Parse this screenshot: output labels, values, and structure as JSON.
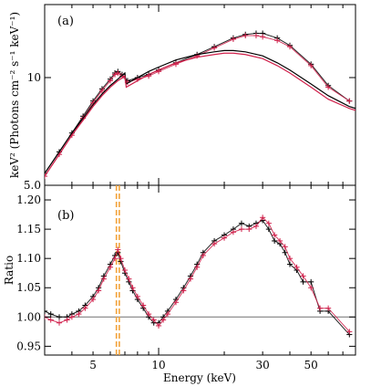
{
  "colors": {
    "black": "#000000",
    "red": "#d01f4a",
    "orange": "#f2a23a",
    "refline": "#707070"
  },
  "chart_data": [
    {
      "panel": "a",
      "type": "line",
      "label": "(a)",
      "ylabel": "keV² (Photons cm⁻² s⁻¹ keV⁻¹)",
      "xscale": "log",
      "yscale": "log",
      "xlim": [
        3.0,
        80.0
      ],
      "ylim": [
        5.0,
        16.0
      ],
      "yticks": [
        5.0,
        10
      ],
      "ytick_labels": [
        "5.0",
        "10"
      ],
      "series": [
        {
          "name": "",
          "kind": "data",
          "color": "black",
          "x": [
            3.0,
            3.5,
            4.0,
            4.5,
            5.0,
            5.5,
            6.0,
            6.3,
            6.5,
            6.8,
            7.2,
            8.0,
            9.0,
            10,
            12,
            15,
            18,
            22,
            25,
            28,
            30,
            35,
            40,
            50,
            60,
            75
          ],
          "y": [
            5.4,
            6.2,
            7.0,
            7.8,
            8.6,
            9.3,
            9.9,
            10.3,
            10.4,
            10.2,
            9.8,
            10.0,
            10.2,
            10.5,
            11.0,
            11.6,
            12.2,
            12.9,
            13.2,
            13.3,
            13.3,
            12.9,
            12.3,
            10.9,
            9.5,
            8.6
          ]
        },
        {
          "name": "",
          "kind": "data",
          "color": "red",
          "x": [
            3.0,
            3.5,
            4.0,
            4.5,
            5.0,
            5.5,
            6.0,
            6.3,
            6.5,
            6.8,
            7.2,
            8.0,
            9.0,
            10,
            12,
            15,
            18,
            22,
            25,
            28,
            30,
            35,
            40,
            50,
            60,
            75
          ],
          "y": [
            5.3,
            6.1,
            6.9,
            7.7,
            8.5,
            9.2,
            9.8,
            10.2,
            10.3,
            10.1,
            9.7,
            9.9,
            10.1,
            10.4,
            10.9,
            11.5,
            12.1,
            12.8,
            13.1,
            13.1,
            13.0,
            12.7,
            12.2,
            10.8,
            9.4,
            8.6
          ]
        },
        {
          "name": "",
          "kind": "model",
          "color": "black",
          "x": [
            3.0,
            3.5,
            4.0,
            4.5,
            5.0,
            5.5,
            6.0,
            6.5,
            7.0,
            7.1,
            8.0,
            9.0,
            10,
            12,
            15,
            18,
            20,
            22,
            25,
            30,
            35,
            40,
            50,
            60,
            75,
            80
          ],
          "y": [
            5.4,
            6.2,
            7.0,
            7.7,
            8.4,
            9.0,
            9.5,
            9.9,
            10.3,
            9.6,
            10.0,
            10.4,
            10.7,
            11.2,
            11.6,
            11.8,
            11.9,
            11.9,
            11.8,
            11.5,
            11.0,
            10.5,
            9.6,
            8.9,
            8.3,
            8.2
          ]
        },
        {
          "name": "",
          "kind": "model",
          "color": "red",
          "x": [
            3.0,
            3.5,
            4.0,
            4.5,
            5.0,
            5.5,
            6.0,
            6.5,
            7.0,
            7.1,
            8.0,
            9.0,
            10,
            12,
            15,
            18,
            20,
            22,
            25,
            30,
            35,
            40,
            50,
            60,
            75,
            80
          ],
          "y": [
            5.3,
            6.1,
            6.9,
            7.6,
            8.3,
            8.9,
            9.4,
            9.8,
            10.1,
            9.4,
            9.8,
            10.2,
            10.5,
            11.0,
            11.4,
            11.6,
            11.7,
            11.7,
            11.6,
            11.3,
            10.8,
            10.3,
            9.4,
            8.7,
            8.2,
            8.1
          ]
        }
      ]
    },
    {
      "panel": "b",
      "type": "line",
      "label": "(b)",
      "xlabel": "Energy (keV)",
      "ylabel": "Ratio",
      "xscale": "log",
      "xlim": [
        3.0,
        80.0
      ],
      "ylim": [
        0.935,
        1.225
      ],
      "xticks": [
        5,
        10,
        30,
        50
      ],
      "xtick_labels": [
        "5",
        "10",
        "30",
        "50"
      ],
      "yticks": [
        0.95,
        1.0,
        1.05,
        1.1,
        1.15,
        1.2
      ],
      "ytick_labels": [
        "0.95",
        "1.00",
        "1.05",
        "1.10",
        "1.15",
        "1.20"
      ],
      "reference_line": 1.0,
      "vlines": [
        6.4,
        6.6
      ],
      "series": [
        {
          "name": "",
          "color": "black",
          "x": [
            3.0,
            3.2,
            3.5,
            3.8,
            4.0,
            4.3,
            4.6,
            5.0,
            5.3,
            5.6,
            6.0,
            6.3,
            6.5,
            6.7,
            7.0,
            7.3,
            7.6,
            8.0,
            8.5,
            9.0,
            9.5,
            10,
            10.5,
            11,
            12,
            13,
            14,
            15,
            16,
            18,
            20,
            22,
            24,
            26,
            28,
            30,
            32,
            34,
            36,
            38,
            40,
            43,
            46,
            50,
            55,
            60,
            75
          ],
          "y": [
            1.01,
            1.005,
            1.0,
            1.0,
            1.005,
            1.01,
            1.02,
            1.035,
            1.05,
            1.07,
            1.09,
            1.105,
            1.11,
            1.095,
            1.075,
            1.06,
            1.045,
            1.03,
            1.015,
            1.0,
            0.99,
            0.99,
            1.0,
            1.01,
            1.03,
            1.05,
            1.07,
            1.09,
            1.11,
            1.13,
            1.14,
            1.15,
            1.16,
            1.155,
            1.16,
            1.165,
            1.15,
            1.13,
            1.125,
            1.11,
            1.09,
            1.08,
            1.06,
            1.06,
            1.01,
            1.01,
            0.97
          ]
        },
        {
          "name": "",
          "color": "red",
          "x": [
            3.0,
            3.2,
            3.5,
            3.8,
            4.0,
            4.3,
            4.6,
            5.0,
            5.3,
            5.6,
            6.0,
            6.3,
            6.5,
            6.7,
            7.0,
            7.3,
            7.6,
            8.0,
            8.5,
            9.0,
            9.5,
            10,
            10.5,
            11,
            12,
            13,
            14,
            15,
            16,
            18,
            20,
            22,
            24,
            26,
            28,
            30,
            32,
            34,
            36,
            38,
            40,
            43,
            46,
            50,
            55,
            60,
            75
          ],
          "y": [
            1.0,
            0.995,
            0.99,
            0.995,
            1.0,
            1.005,
            1.015,
            1.03,
            1.045,
            1.065,
            1.085,
            1.1,
            1.115,
            1.1,
            1.08,
            1.065,
            1.05,
            1.035,
            1.02,
            1.005,
            0.995,
            0.985,
            0.995,
            1.005,
            1.025,
            1.045,
            1.065,
            1.085,
            1.105,
            1.125,
            1.135,
            1.145,
            1.15,
            1.15,
            1.155,
            1.17,
            1.16,
            1.14,
            1.13,
            1.12,
            1.1,
            1.085,
            1.07,
            1.05,
            1.015,
            1.015,
            0.975
          ]
        }
      ]
    }
  ]
}
